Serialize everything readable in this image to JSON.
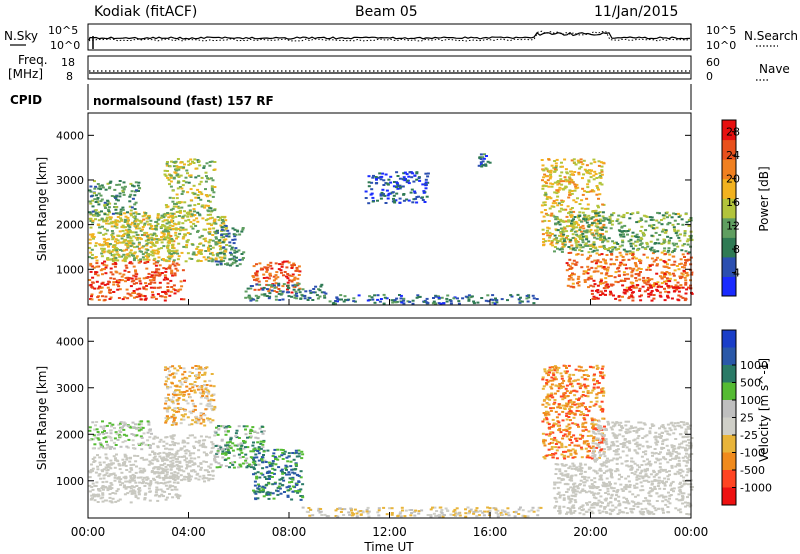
{
  "header": {
    "station": "Kodiak (fitACF)",
    "beam": "Beam 05",
    "date": "11/Jan/2015"
  },
  "side_labels": {
    "nsky": "N.Sky",
    "freq": "Freq.",
    "freq_unit": "[MHz]",
    "cpid": "CPID",
    "nsearch": "N.Search",
    "nave": "Nave"
  },
  "cpid_text": "normalsound (fast) 157 RF",
  "noise_axis": {
    "left_ticks": [
      "10^5",
      "10^0"
    ],
    "right_ticks": [
      "10^5",
      "10^0"
    ]
  },
  "freq_axis": {
    "left_ticks": [
      "18",
      "8"
    ],
    "right_ticks": [
      "60",
      "0"
    ]
  },
  "colors": {
    "power": [
      "#1a2bff",
      "#2b4fb0",
      "#2f7a54",
      "#5f9e60",
      "#b2c43b",
      "#f2b21f",
      "#f08020",
      "#e8501c",
      "#e81010"
    ],
    "velocity": [
      "#ee1111",
      "#ff4422",
      "#f08a1c",
      "#e8b43a",
      "#cfcfc8",
      "#bfbfbf",
      "#55bb33",
      "#2a7a66",
      "#2a58a8",
      "#1a3ec8"
    ],
    "ground_scatter": "#c8c8c0"
  },
  "chart_data": [
    {
      "type": "heatmap",
      "name": "power",
      "xlabel": "Time UT",
      "ylabel": "Slant Range [km]",
      "xlim": [
        0,
        24
      ],
      "ylim": [
        200,
        4500
      ],
      "x_ticks": [
        "00:00",
        "04:00",
        "08:00",
        "12:00",
        "16:00",
        "20:00",
        "00:00"
      ],
      "y_ticks": [
        1000,
        2000,
        3000,
        4000
      ],
      "colorbar": {
        "label": "Power [dB]",
        "ticks": [
          4,
          8,
          12,
          16,
          20,
          24,
          28
        ],
        "range": [
          0,
          30
        ]
      },
      "regions": [
        {
          "t0": 0.0,
          "t1": 3.8,
          "r0": 320,
          "r1": 1200,
          "value": 26
        },
        {
          "t0": 0.0,
          "t1": 3.5,
          "r0": 1200,
          "r1": 2300,
          "value": 16
        },
        {
          "t0": 0.5,
          "t1": 5.5,
          "r0": 1200,
          "r1": 2200,
          "value": 15
        },
        {
          "t0": 3.0,
          "t1": 5.0,
          "r0": 2200,
          "r1": 3500,
          "value": 14
        },
        {
          "t0": 0.0,
          "t1": 2.0,
          "r0": 2200,
          "r1": 3000,
          "value": 10
        },
        {
          "t0": 5.0,
          "t1": 6.2,
          "r0": 1100,
          "r1": 2000,
          "value": 8
        },
        {
          "t0": 6.5,
          "t1": 8.4,
          "r0": 500,
          "r1": 1200,
          "value": 26
        },
        {
          "t0": 6.2,
          "t1": 9.5,
          "r0": 320,
          "r1": 700,
          "value": 8
        },
        {
          "t0": 9.5,
          "t1": 18.0,
          "r0": 250,
          "r1": 450,
          "value": 6
        },
        {
          "t0": 11.0,
          "t1": 13.5,
          "r0": 2500,
          "r1": 3200,
          "value": 4
        },
        {
          "t0": 15.5,
          "t1": 16.0,
          "r0": 3300,
          "r1": 3600,
          "value": 6
        },
        {
          "t0": 18.0,
          "t1": 20.5,
          "r0": 1500,
          "r1": 3500,
          "value": 18
        },
        {
          "t0": 19.0,
          "t1": 24.0,
          "r0": 600,
          "r1": 1400,
          "value": 24
        },
        {
          "t0": 20.0,
          "t1": 24.0,
          "r0": 320,
          "r1": 700,
          "value": 29
        },
        {
          "t0": 18.5,
          "t1": 24.0,
          "r0": 1400,
          "r1": 2300,
          "value": 12
        }
      ]
    },
    {
      "type": "heatmap",
      "name": "velocity",
      "xlabel": "Time UT",
      "ylabel": "Slant Range [km]",
      "xlim": [
        0,
        24
      ],
      "ylim": [
        200,
        4500
      ],
      "x_ticks": [
        "00:00",
        "04:00",
        "08:00",
        "12:00",
        "16:00",
        "20:00",
        "00:00"
      ],
      "y_ticks": [
        1000,
        2000,
        3000,
        4000
      ],
      "colorbar": {
        "label": "Velocity [m s^-1]",
        "ticks": [
          "-1000",
          "-500",
          "-100",
          "-25",
          "25",
          "100",
          "500",
          "1000"
        ]
      },
      "regions": [
        {
          "t0": 0.0,
          "t1": 3.6,
          "r0": 550,
          "r1": 1600,
          "value": "ground"
        },
        {
          "t0": 2.5,
          "t1": 5.0,
          "r0": 1000,
          "r1": 2000,
          "value": "ground"
        },
        {
          "t0": 0.0,
          "t1": 2.5,
          "r0": 1700,
          "r1": 2300,
          "value": 25
        },
        {
          "t0": 3.0,
          "t1": 5.0,
          "r0": 2200,
          "r1": 3500,
          "value": -100
        },
        {
          "t0": 5.0,
          "t1": 7.0,
          "r0": 1300,
          "r1": 2200,
          "value": 100
        },
        {
          "t0": 6.5,
          "t1": 8.5,
          "r0": 600,
          "r1": 1700,
          "value": 500
        },
        {
          "t0": 8.5,
          "t1": 18.0,
          "r0": 250,
          "r1": 450,
          "value": -25
        },
        {
          "t0": 18.0,
          "t1": 20.5,
          "r0": 1500,
          "r1": 3500,
          "value": -500
        },
        {
          "t0": 18.5,
          "t1": 24.0,
          "r0": 300,
          "r1": 1400,
          "value": "ground"
        },
        {
          "t0": 20.0,
          "t1": 24.0,
          "r0": 1400,
          "r1": 2300,
          "value": "ground"
        }
      ]
    }
  ]
}
